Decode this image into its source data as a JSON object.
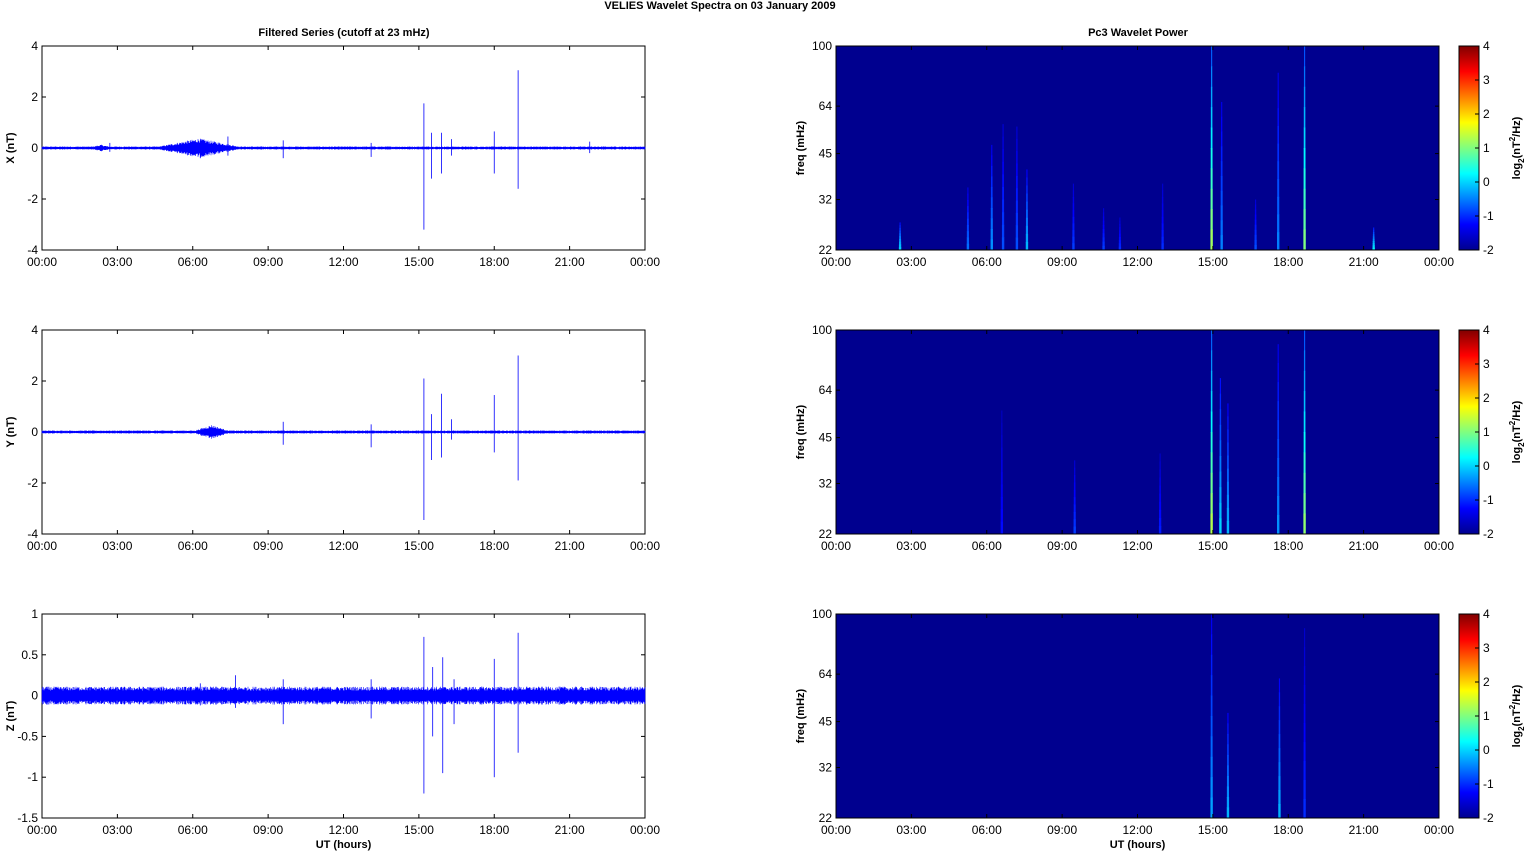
{
  "figure": {
    "suptitle": "VELIES Wavelet Spectra on 03 January   2009",
    "left_title": "Filtered Series (cutoff at 23 mHz)",
    "right_title": "Pc3 Wavelet Power"
  },
  "colors": {
    "trace": "#0000ff",
    "spectrum_background": "#00008f",
    "colormap": [
      "#00008f",
      "#0000ff",
      "#00ffff",
      "#ffff00",
      "#ff0000",
      "#800000"
    ]
  },
  "chart_data": [
    {
      "type": "line",
      "xlabel": "",
      "ylabel": "X (nT)",
      "ylim": [
        -4,
        4
      ],
      "yticks": [
        "4",
        "2",
        "0",
        "-2",
        "-4"
      ],
      "xticks": [
        "00:00",
        "03:00",
        "06:00",
        "09:00",
        "12:00",
        "15:00",
        "18:00",
        "21:00",
        "00:00"
      ],
      "xlim_hours": [
        0,
        24
      ],
      "noise_amplitude": 0.06,
      "disturbed_intervals": [
        {
          "start": 4.5,
          "end": 8.0,
          "amplitude": 0.35
        },
        {
          "start": 1.9,
          "end": 2.8,
          "amplitude": 0.1
        }
      ],
      "spikes": [
        {
          "t": 2.7,
          "min": -0.15,
          "max": 0.2
        },
        {
          "t": 6.3,
          "min": -0.4,
          "max": 0.3
        },
        {
          "t": 7.4,
          "min": -0.3,
          "max": 0.45
        },
        {
          "t": 9.6,
          "min": -0.4,
          "max": 0.3
        },
        {
          "t": 13.1,
          "min": -0.35,
          "max": 0.2
        },
        {
          "t": 15.2,
          "min": -3.2,
          "max": 1.75
        },
        {
          "t": 15.5,
          "min": -1.2,
          "max": 0.6
        },
        {
          "t": 15.9,
          "min": -1.0,
          "max": 0.6
        },
        {
          "t": 16.3,
          "min": -0.3,
          "max": 0.35
        },
        {
          "t": 18.0,
          "min": -1.0,
          "max": 0.65
        },
        {
          "t": 18.95,
          "min": -1.6,
          "max": 3.05
        },
        {
          "t": 21.8,
          "min": -0.2,
          "max": 0.25
        }
      ]
    },
    {
      "type": "heatmap",
      "title": "Pc3 Wavelet Power",
      "xlabel": "",
      "ylabel": "freq (mHz)",
      "yticks": [
        "100",
        "64",
        "45",
        "32",
        "22"
      ],
      "ylim_mhz": [
        22,
        100
      ],
      "xticks": [
        "00:00",
        "03:00",
        "06:00",
        "09:00",
        "12:00",
        "15:00",
        "18:00",
        "21:00",
        "00:00"
      ],
      "colorbar": {
        "label": "log2(nT2/Hz)",
        "range": [
          -2,
          4
        ],
        "ticks": [
          "4",
          "3",
          "2",
          "1",
          "0",
          "-1",
          "-2"
        ]
      },
      "streaks": [
        {
          "t": 2.55,
          "fmax": 27,
          "value": 0.0
        },
        {
          "t": 5.25,
          "fmax": 35,
          "value": -0.6
        },
        {
          "t": 6.2,
          "fmax": 48,
          "value": -0.4
        },
        {
          "t": 6.65,
          "fmax": 56,
          "value": -0.8
        },
        {
          "t": 7.2,
          "fmax": 55,
          "value": -0.8
        },
        {
          "t": 7.6,
          "fmax": 40,
          "value": -0.2
        },
        {
          "t": 9.45,
          "fmax": 36,
          "value": -0.9
        },
        {
          "t": 10.65,
          "fmax": 30,
          "value": -0.9
        },
        {
          "t": 11.3,
          "fmax": 28,
          "value": -1.0
        },
        {
          "t": 13.0,
          "fmax": 36,
          "value": -1.0
        },
        {
          "t": 14.95,
          "fmax": 100,
          "value": 1.2
        },
        {
          "t": 15.35,
          "fmax": 66,
          "value": -0.5
        },
        {
          "t": 16.7,
          "fmax": 32,
          "value": -0.8
        },
        {
          "t": 17.6,
          "fmax": 82,
          "value": -0.5
        },
        {
          "t": 18.65,
          "fmax": 100,
          "value": 1.0
        },
        {
          "t": 21.4,
          "fmax": 26,
          "value": 0.2
        }
      ]
    },
    {
      "type": "line",
      "xlabel": "",
      "ylabel": "Y (nT)",
      "ylim": [
        -4,
        4
      ],
      "yticks": [
        "4",
        "2",
        "0",
        "-2",
        "-4"
      ],
      "xticks": [
        "00:00",
        "03:00",
        "06:00",
        "09:00",
        "12:00",
        "15:00",
        "18:00",
        "21:00",
        "00:00"
      ],
      "xlim_hours": [
        0,
        24
      ],
      "noise_amplitude": 0.06,
      "disturbed_intervals": [
        {
          "start": 6.0,
          "end": 7.5,
          "amplitude": 0.25
        }
      ],
      "spikes": [
        {
          "t": 9.6,
          "min": -0.5,
          "max": 0.4
        },
        {
          "t": 13.1,
          "min": -0.6,
          "max": 0.3
        },
        {
          "t": 15.2,
          "min": -3.45,
          "max": 2.1
        },
        {
          "t": 15.5,
          "min": -1.1,
          "max": 0.7
        },
        {
          "t": 15.9,
          "min": -1.0,
          "max": 1.5
        },
        {
          "t": 16.3,
          "min": -0.3,
          "max": 0.5
        },
        {
          "t": 18.0,
          "min": -0.8,
          "max": 1.45
        },
        {
          "t": 18.95,
          "min": -1.9,
          "max": 3.0
        }
      ]
    },
    {
      "type": "heatmap",
      "title": "",
      "xlabel": "",
      "ylabel": "freq (mHz)",
      "yticks": [
        "100",
        "64",
        "45",
        "32",
        "22"
      ],
      "ylim_mhz": [
        22,
        100
      ],
      "xticks": [
        "00:00",
        "03:00",
        "06:00",
        "09:00",
        "12:00",
        "15:00",
        "18:00",
        "21:00",
        "00:00"
      ],
      "colorbar": {
        "label": "log2(nT2/Hz)",
        "range": [
          -2,
          4
        ],
        "ticks": [
          "4",
          "3",
          "2",
          "1",
          "0",
          "-1",
          "-2"
        ]
      },
      "streaks": [
        {
          "t": 6.6,
          "fmax": 55,
          "value": -1.2
        },
        {
          "t": 9.5,
          "fmax": 38,
          "value": -0.9
        },
        {
          "t": 12.9,
          "fmax": 40,
          "value": -1.1
        },
        {
          "t": 14.95,
          "fmax": 100,
          "value": 1.3
        },
        {
          "t": 15.3,
          "fmax": 70,
          "value": 0.0
        },
        {
          "t": 15.6,
          "fmax": 58,
          "value": -0.2
        },
        {
          "t": 17.6,
          "fmax": 90,
          "value": -0.4
        },
        {
          "t": 18.65,
          "fmax": 100,
          "value": 1.1
        }
      ]
    },
    {
      "type": "line",
      "xlabel": "UT (hours)",
      "ylabel": "Z (nT)",
      "ylim": [
        -1.5,
        1
      ],
      "yticks": [
        "1",
        "0.5",
        "0",
        "-0.5",
        "-1",
        "-1.5"
      ],
      "xticks": [
        "00:00",
        "03:00",
        "06:00",
        "09:00",
        "12:00",
        "15:00",
        "18:00",
        "21:00",
        "00:00"
      ],
      "xlim_hours": [
        0,
        24
      ],
      "noise_amplitude": 0.11,
      "disturbed_intervals": [],
      "spikes": [
        {
          "t": 6.3,
          "min": -0.12,
          "max": 0.15
        },
        {
          "t": 7.7,
          "min": -0.15,
          "max": 0.25
        },
        {
          "t": 9.6,
          "min": -0.35,
          "max": 0.2
        },
        {
          "t": 13.1,
          "min": -0.28,
          "max": 0.2
        },
        {
          "t": 15.2,
          "min": -1.2,
          "max": 0.72
        },
        {
          "t": 15.55,
          "min": -0.5,
          "max": 0.35
        },
        {
          "t": 15.95,
          "min": -0.95,
          "max": 0.47
        },
        {
          "t": 16.4,
          "min": -0.35,
          "max": 0.2
        },
        {
          "t": 18.0,
          "min": -1.0,
          "max": 0.45
        },
        {
          "t": 18.95,
          "min": -0.7,
          "max": 0.77
        }
      ]
    },
    {
      "type": "heatmap",
      "title": "",
      "xlabel": "UT (hours)",
      "ylabel": "freq (mHz)",
      "yticks": [
        "100",
        "64",
        "45",
        "32",
        "22"
      ],
      "ylim_mhz": [
        22,
        100
      ],
      "xticks": [
        "00:00",
        "03:00",
        "06:00",
        "09:00",
        "12:00",
        "15:00",
        "18:00",
        "21:00",
        "00:00"
      ],
      "colorbar": {
        "label": "log2(nT2/Hz)",
        "range": [
          -2,
          4
        ],
        "ticks": [
          "4",
          "3",
          "2",
          "1",
          "0",
          "-1",
          "-2"
        ]
      },
      "streaks": [
        {
          "t": 14.95,
          "fmax": 100,
          "value": -0.3
        },
        {
          "t": 15.6,
          "fmax": 48,
          "value": -0.2
        },
        {
          "t": 17.65,
          "fmax": 62,
          "value": -0.2
        },
        {
          "t": 18.65,
          "fmax": 90,
          "value": -1.0
        }
      ]
    }
  ]
}
